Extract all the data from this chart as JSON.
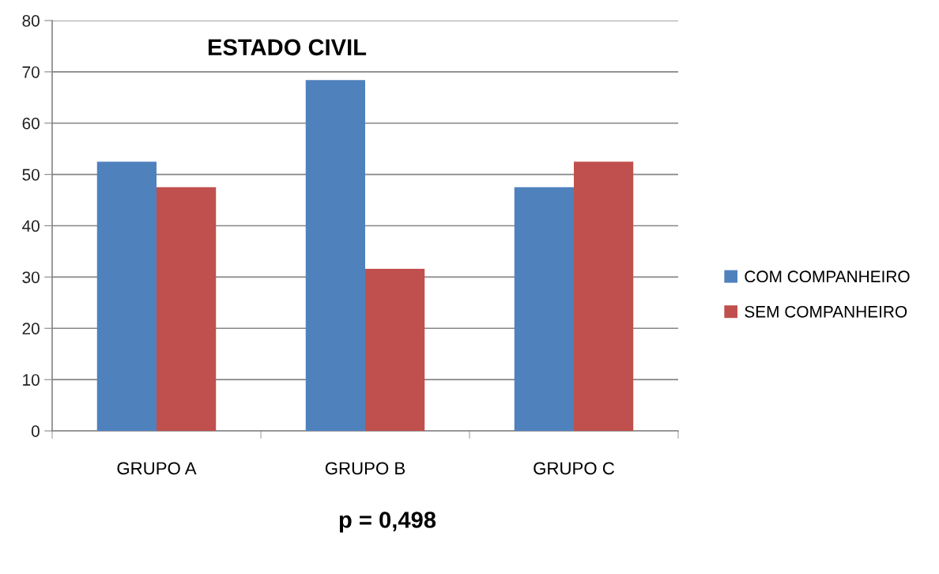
{
  "chart_data": {
    "type": "bar",
    "title": "ESTADO CIVIL",
    "categories": [
      "GRUPO A",
      "GRUPO B",
      "GRUPO C"
    ],
    "series": [
      {
        "name": "COM COMPANHEIRO",
        "color": "#4f81bd",
        "values": [
          52.5,
          68.4,
          47.5
        ]
      },
      {
        "name": "SEM COMPANHEIRO",
        "color": "#c0504d",
        "values": [
          47.5,
          31.6,
          52.5
        ]
      }
    ],
    "ylim": [
      0,
      80
    ],
    "yticks": [
      0,
      10,
      20,
      30,
      40,
      50,
      60,
      70,
      80
    ],
    "grid": "y",
    "legend": "right",
    "annotations": [
      "p = 0,498"
    ]
  }
}
